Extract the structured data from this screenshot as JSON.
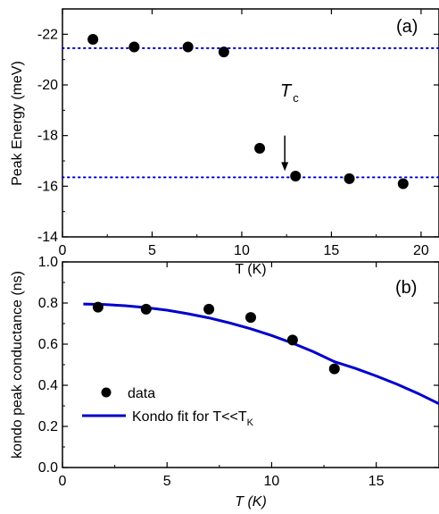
{
  "chart_data": [
    {
      "type": "scatter",
      "panel_label": "(a)",
      "xlabel": "T (K)",
      "ylabel": "Peak Energy (meV)",
      "xlim": [
        0,
        21
      ],
      "ylim": [
        -14,
        -23
      ],
      "y_axis_inverted": true,
      "xticks": [
        0,
        5,
        10,
        15,
        20
      ],
      "yticks": [
        -14,
        -16,
        -18,
        -20,
        -22
      ],
      "tick_labels_x": [
        "0",
        "5",
        "10",
        "15",
        "20"
      ],
      "tick_labels_y": [
        "-14",
        "-16",
        "-18",
        "-20",
        "-22"
      ],
      "grid": false,
      "series": [
        {
          "x": [
            1.7,
            4.0,
            7.0,
            9.0,
            11.0,
            13.0,
            16.0,
            19.0
          ],
          "y": [
            -21.8,
            -21.5,
            -21.5,
            -21.3,
            -17.5,
            -16.4,
            -16.3,
            -16.1
          ]
        }
      ],
      "reference_lines": [
        {
          "y": -21.45,
          "style": "dotted",
          "color": "#0000cc"
        },
        {
          "y": -16.35,
          "style": "dotted",
          "color": "#0000cc"
        }
      ],
      "annotation": {
        "text": "T",
        "subscript": "c",
        "arrow_x": 12.4,
        "arrow_from_y": -18.0,
        "arrow_to_y": -16.6
      }
    },
    {
      "type": "scatter",
      "panel_label": "(b)",
      "xlabel": "T (K)",
      "ylabel": "kondo peak conductance (ns)",
      "xlim": [
        0,
        18
      ],
      "ylim": [
        0.0,
        1.0
      ],
      "xticks": [
        0,
        5,
        10,
        15
      ],
      "yticks": [
        0.0,
        0.2,
        0.4,
        0.6,
        0.8,
        1.0
      ],
      "tick_labels_x": [
        "0",
        "5",
        "10",
        "15"
      ],
      "tick_labels_y": [
        "0.0",
        "0.2",
        "0.4",
        "0.6",
        "0.8",
        "1.0"
      ],
      "grid": false,
      "legend_position": "bottom-left",
      "series": [
        {
          "name": "data",
          "marker": "circle",
          "x": [
            1.7,
            4.0,
            7.0,
            9.0,
            11.0,
            13.0
          ],
          "y": [
            0.78,
            0.77,
            0.77,
            0.73,
            0.62,
            0.48
          ]
        },
        {
          "name": "Kondo fit for T<<T",
          "name_subscript": "K",
          "style": "line",
          "color": "#0000cc",
          "x": [
            1,
            2,
            3,
            4,
            5,
            6,
            7,
            8,
            9,
            10,
            11,
            12,
            13,
            14,
            15,
            16,
            17,
            18
          ],
          "y": [
            0.795,
            0.793,
            0.787,
            0.778,
            0.765,
            0.748,
            0.728,
            0.703,
            0.675,
            0.642,
            0.605,
            0.563,
            0.515,
            0.482,
            0.445,
            0.405,
            0.36,
            0.31
          ]
        }
      ]
    }
  ],
  "colors": {
    "marker": "#000000",
    "fit_line": "#0000cc",
    "ref_line": "#0000cc"
  }
}
